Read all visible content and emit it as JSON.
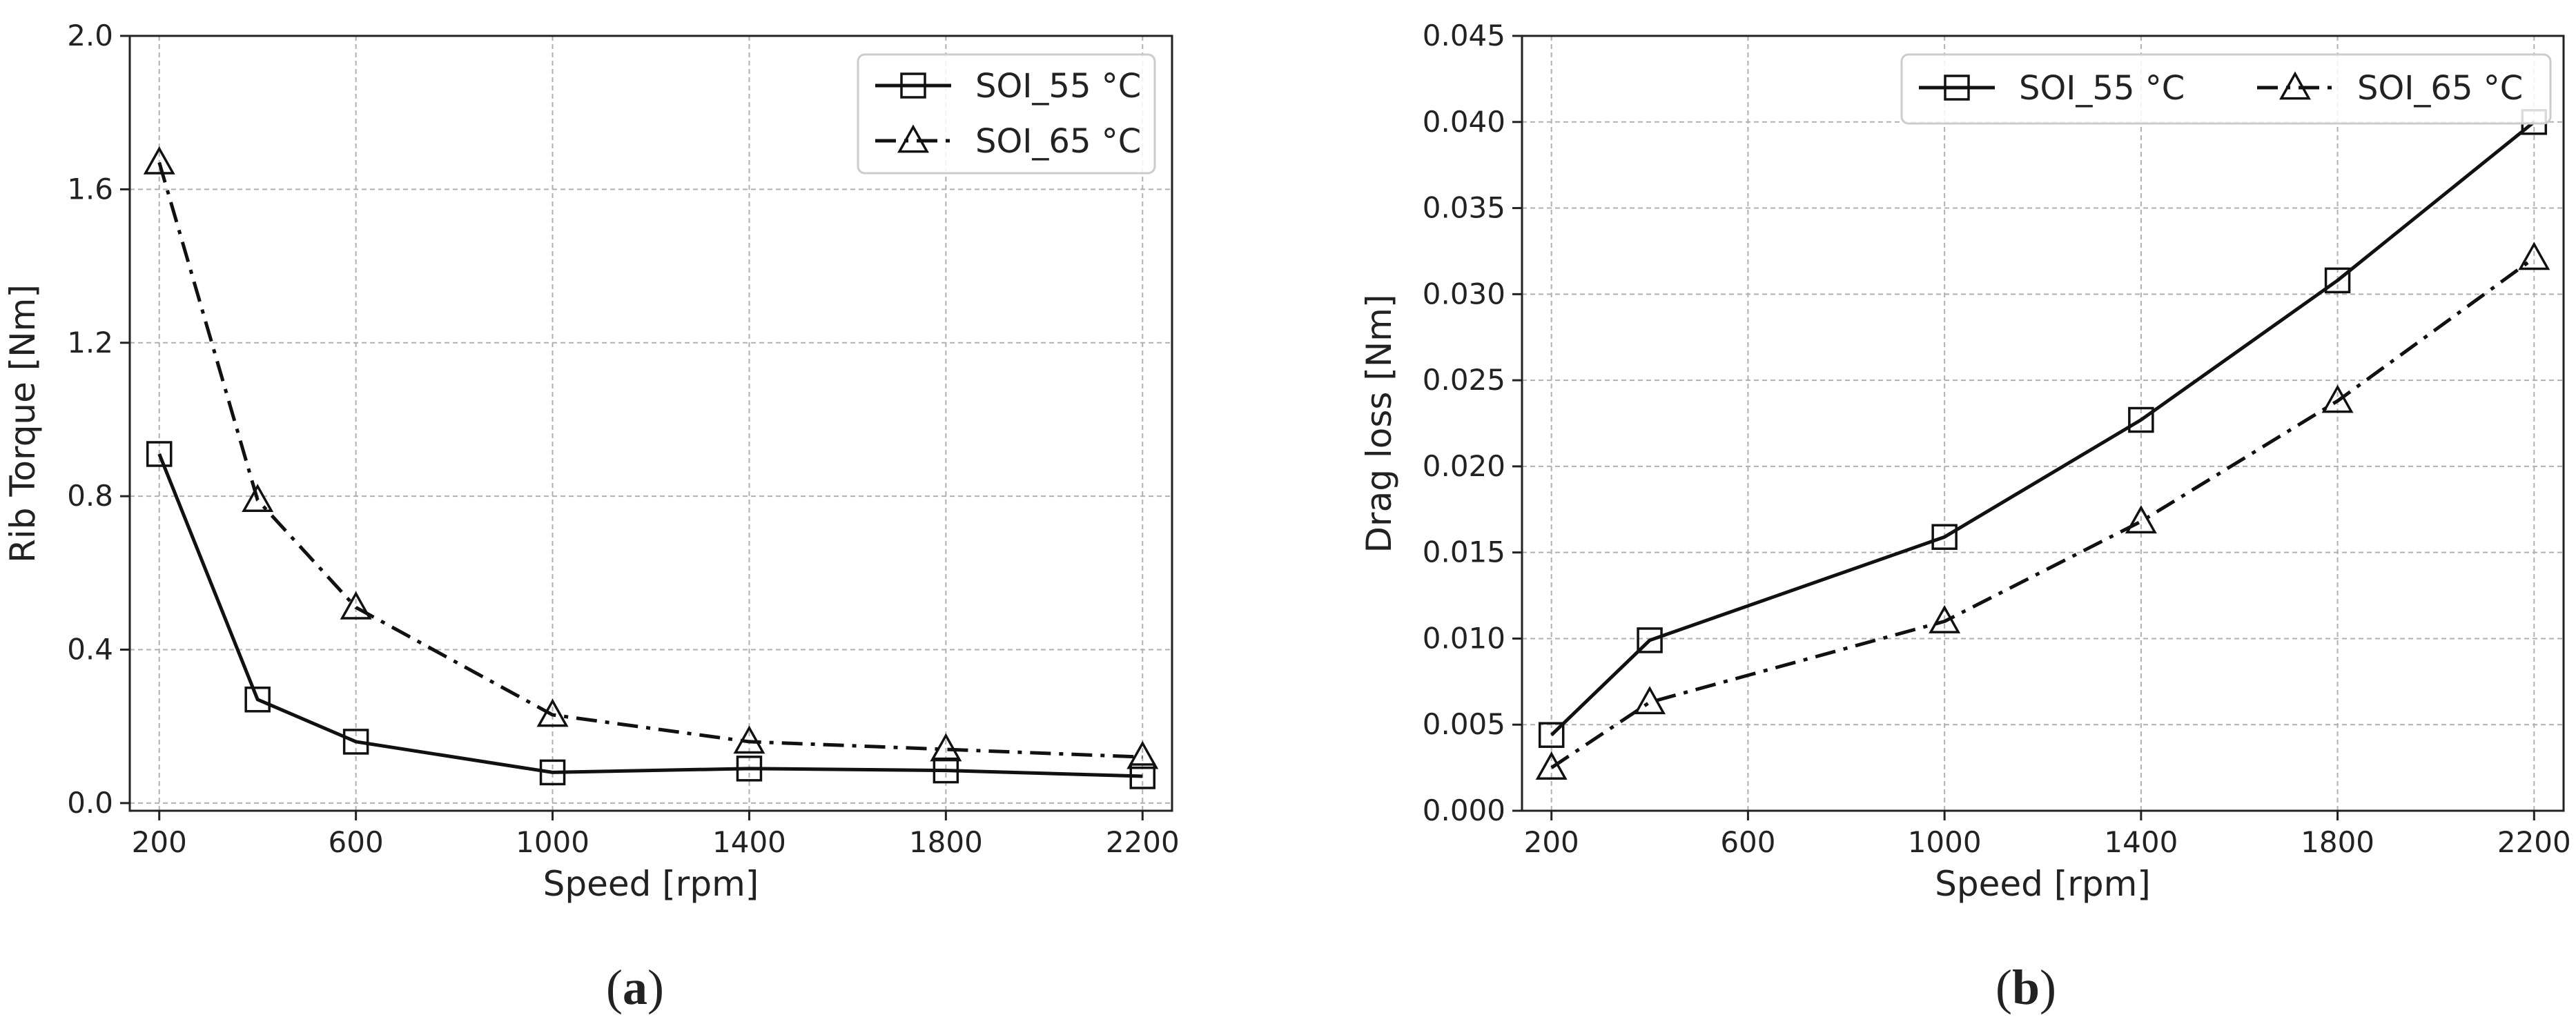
{
  "chart_data": [
    {
      "type": "line",
      "panel_label": "(a)",
      "xlabel": "Speed [rpm]",
      "ylabel": "Rib Torque [Nm]",
      "xlim": [
        140,
        2260
      ],
      "ylim": [
        -0.02,
        2.0
      ],
      "xticks": [
        200,
        600,
        1000,
        1400,
        1800,
        2200
      ],
      "xtick_labels": [
        "200",
        "600",
        "1000",
        "1400",
        "1800",
        "2200"
      ],
      "yticks": [
        0.0,
        0.4,
        0.8,
        1.2,
        1.6,
        2.0
      ],
      "ytick_labels": [
        "0.0",
        "0.4",
        "0.8",
        "1.2",
        "1.6",
        "2.0"
      ],
      "grid": true,
      "legend_position": "top-right",
      "legend_layout": "vertical",
      "x": [
        200,
        400,
        600,
        1000,
        1400,
        1800,
        2200
      ],
      "series": [
        {
          "name": "SOI_55 °C",
          "marker": "square",
          "linestyle": "solid",
          "values": [
            0.91,
            0.27,
            0.16,
            0.08,
            0.09,
            0.085,
            0.07
          ]
        },
        {
          "name": "SOI_65 °C",
          "marker": "triangle",
          "linestyle": "dashdot",
          "values": [
            1.67,
            0.79,
            0.51,
            0.23,
            0.16,
            0.14,
            0.12
          ]
        }
      ]
    },
    {
      "type": "line",
      "panel_label": "(b)",
      "xlabel": "Speed [rpm]",
      "ylabel": "Drag loss [Nm]",
      "xlim": [
        140,
        2260
      ],
      "ylim": [
        0.0,
        0.045
      ],
      "xticks": [
        200,
        600,
        1000,
        1400,
        1800,
        2200
      ],
      "xtick_labels": [
        "200",
        "600",
        "1000",
        "1400",
        "1800",
        "2200"
      ],
      "yticks": [
        0.0,
        0.005,
        0.01,
        0.015,
        0.02,
        0.025,
        0.03,
        0.035,
        0.04,
        0.045
      ],
      "ytick_labels": [
        "0.000",
        "0.005",
        "0.010",
        "0.015",
        "0.020",
        "0.025",
        "0.030",
        "0.035",
        "0.040",
        "0.045"
      ],
      "grid": true,
      "legend_position": "top",
      "legend_layout": "horizontal",
      "x": [
        200,
        400,
        1000,
        1400,
        1800,
        2200
      ],
      "series": [
        {
          "name": "SOI_55 °C",
          "marker": "square",
          "linestyle": "solid",
          "values": [
            0.0044,
            0.0099,
            0.0159,
            0.0227,
            0.0308,
            0.04
          ]
        },
        {
          "name": "SOI_65 °C",
          "marker": "triangle",
          "linestyle": "dashdot",
          "values": [
            0.0025,
            0.0063,
            0.011,
            0.0168,
            0.0238,
            0.0321
          ]
        }
      ]
    }
  ]
}
